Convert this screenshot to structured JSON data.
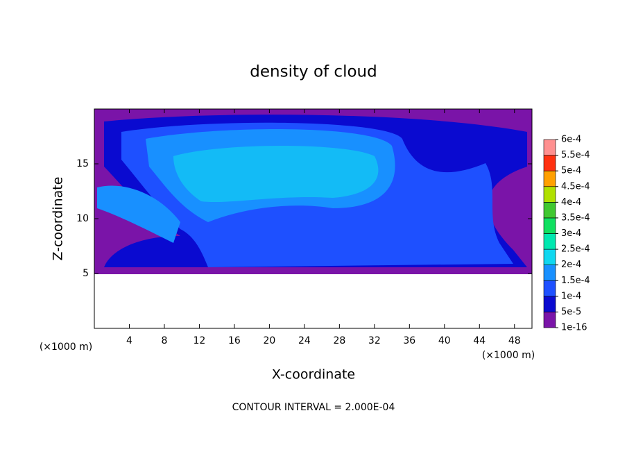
{
  "chart_data": {
    "type": "contour",
    "title": "density of cloud",
    "xlabel": "X-coordinate",
    "ylabel": "Z-coordinate",
    "x_unit_left": "(×1000 m)",
    "x_unit_right": "(×1000 m)",
    "annotation": "CONTOUR INTERVAL = 2.000E-04",
    "xlim": [
      0,
      50
    ],
    "ylim": [
      0,
      20
    ],
    "xticks": [
      4,
      8,
      12,
      16,
      20,
      24,
      28,
      32,
      36,
      40,
      44,
      48
    ],
    "yticks": [
      5,
      10,
      15
    ],
    "colorbar": {
      "ticks": [
        {
          "value": 1e-16,
          "label": "1e-16"
        },
        {
          "value": 5e-05,
          "label": "5e-5"
        },
        {
          "value": 0.0001,
          "label": "1e-4"
        },
        {
          "value": 0.00015,
          "label": "1.5e-4"
        },
        {
          "value": 0.0002,
          "label": "2e-4"
        },
        {
          "value": 0.00025,
          "label": "2.5e-4"
        },
        {
          "value": 0.0003,
          "label": "3e-4"
        },
        {
          "value": 0.00035,
          "label": "3.5e-4"
        },
        {
          "value": 0.0004,
          "label": "4e-4"
        },
        {
          "value": 0.00045,
          "label": "4.5e-4"
        },
        {
          "value": 0.0005,
          "label": "5e-4"
        },
        {
          "value": 0.00055,
          "label": "5.5e-4"
        },
        {
          "value": 0.0006,
          "label": "6e-4"
        }
      ],
      "colors": [
        "#7a14a8",
        "#0a0ad0",
        "#1e50ff",
        "#1890ff",
        "#10d8f0",
        "#00e8b0",
        "#10e060",
        "#40c830",
        "#b0e000",
        "#ffa000",
        "#ff3010",
        "#ff9090"
      ]
    }
  }
}
